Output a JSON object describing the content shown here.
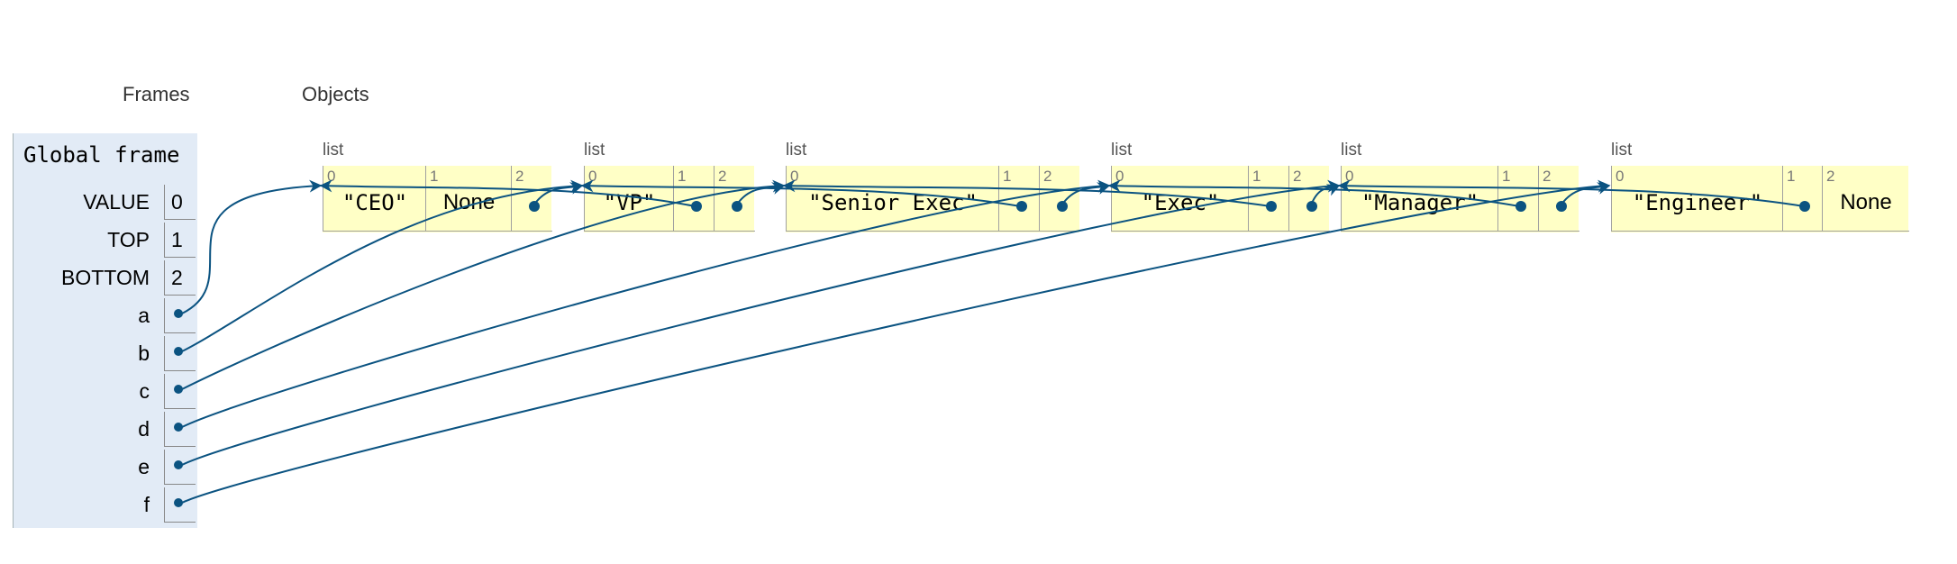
{
  "headings": {
    "frames": "Frames",
    "objects": "Objects"
  },
  "global_frame": {
    "title": "Global frame",
    "variables": [
      {
        "name": "VALUE",
        "value": "0"
      },
      {
        "name": "TOP",
        "value": "1"
      },
      {
        "name": "BOTTOM",
        "value": "2"
      },
      {
        "name": "a",
        "value": null,
        "points_to": 0
      },
      {
        "name": "b",
        "value": null,
        "points_to": 1
      },
      {
        "name": "c",
        "value": null,
        "points_to": 2
      },
      {
        "name": "d",
        "value": null,
        "points_to": 3
      },
      {
        "name": "e",
        "value": null,
        "points_to": 4
      },
      {
        "name": "f",
        "value": null,
        "points_to": 5
      }
    ]
  },
  "objects": [
    {
      "type": "list",
      "items": [
        {
          "index": "0",
          "value": "\"CEO\""
        },
        {
          "index": "1",
          "value": "None"
        },
        {
          "index": "2",
          "value": null,
          "points_to": 1
        }
      ]
    },
    {
      "type": "list",
      "items": [
        {
          "index": "0",
          "value": "\"VP\""
        },
        {
          "index": "1",
          "value": null,
          "points_to": 0
        },
        {
          "index": "2",
          "value": null,
          "points_to": 2
        }
      ]
    },
    {
      "type": "list",
      "items": [
        {
          "index": "0",
          "value": "\"Senior Exec\""
        },
        {
          "index": "1",
          "value": null,
          "points_to": 1
        },
        {
          "index": "2",
          "value": null,
          "points_to": 3
        }
      ]
    },
    {
      "type": "list",
      "items": [
        {
          "index": "0",
          "value": "\"Exec\""
        },
        {
          "index": "1",
          "value": null,
          "points_to": 2
        },
        {
          "index": "2",
          "value": null,
          "points_to": 4
        }
      ]
    },
    {
      "type": "list",
      "items": [
        {
          "index": "0",
          "value": "\"Manager\""
        },
        {
          "index": "1",
          "value": null,
          "points_to": 3
        },
        {
          "index": "2",
          "value": null,
          "points_to": 5
        }
      ]
    },
    {
      "type": "list",
      "items": [
        {
          "index": "0",
          "value": "\"Engineer\""
        },
        {
          "index": "1",
          "value": null,
          "points_to": 4
        },
        {
          "index": "2",
          "value": "None"
        }
      ]
    }
  ],
  "colors": {
    "pointer": "#0b5381",
    "list_bg": "#ffffc6",
    "frame_bg": "#e2ebf6"
  }
}
